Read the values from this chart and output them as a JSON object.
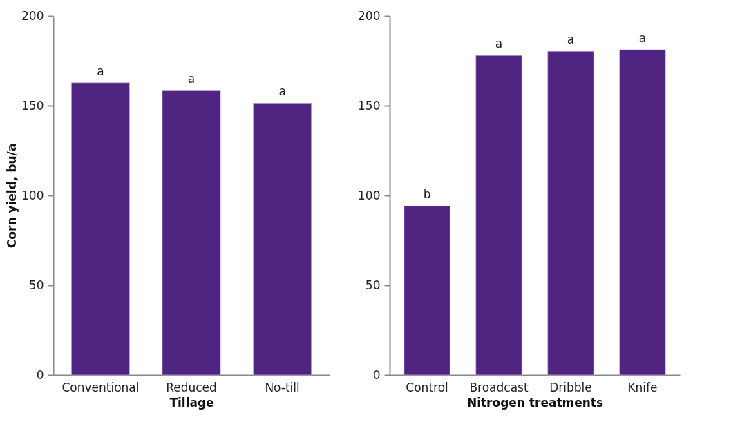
{
  "chart_data": [
    {
      "type": "bar",
      "categories": [
        "Conventional",
        "Reduced",
        "No-till"
      ],
      "values": [
        162.8,
        158.3,
        151.4
      ],
      "color": "#502582",
      "xlabel": "Tillage",
      "ylabel": "Corn yield, bu/a",
      "ylim": [
        0,
        200
      ],
      "yticks": [
        0,
        50,
        100,
        150,
        200
      ],
      "grid": false,
      "annotations": [
        {
          "text": "a",
          "x": "Conventional",
          "y": 162.8
        },
        {
          "text": "a",
          "x": "Reduced",
          "y": 158.3
        },
        {
          "text": "a",
          "x": "No-till",
          "y": 151.4
        }
      ]
    },
    {
      "type": "bar",
      "categories": [
        "Control",
        "Broadcast",
        "Dribble",
        "Knife"
      ],
      "values": [
        94.1,
        178,
        180.3,
        181.2
      ],
      "color": "#502582",
      "xlabel": "Nitrogen treatments",
      "ylim": [
        0,
        200
      ],
      "yticks": [
        0,
        50,
        100,
        150,
        200
      ],
      "grid": false,
      "annotations": [
        {
          "text": "b",
          "x": "Control",
          "y": 94.1
        },
        {
          "text": "a",
          "x": "Broadcast",
          "y": 178
        },
        {
          "text": "a",
          "x": "Dribble",
          "y": 180.3
        },
        {
          "text": "a",
          "x": "Knife",
          "y": 181.2
        }
      ]
    }
  ]
}
